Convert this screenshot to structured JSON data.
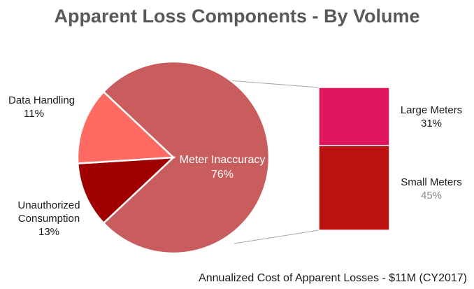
{
  "title": "Apparent Loss Components - By Volume",
  "footnote": "Annualized Cost of Apparent Losses - $11M (CY2017)",
  "chart_data": [
    {
      "type": "pie",
      "slices": [
        {
          "label": "Meter Inaccuracy",
          "value": 76,
          "value_label": "76%",
          "color": "#c95c5c"
        },
        {
          "label": "Data Handling",
          "value": 11,
          "value_label": "11%",
          "color": "#a10000"
        },
        {
          "label": "Unauthorized Consumption",
          "value": 13,
          "value_label": "13%",
          "color": "#ff6b63"
        }
      ]
    },
    {
      "type": "bar",
      "stacked": true,
      "categories": [
        "Meter Inaccuracy"
      ],
      "series": [
        {
          "name": "Large Meters",
          "values": [
            31
          ],
          "value_label": "31%",
          "color": "#e0175f"
        },
        {
          "name": "Small Meters",
          "values": [
            45
          ],
          "value_label": "45%",
          "color": "#bb1111"
        }
      ]
    }
  ]
}
